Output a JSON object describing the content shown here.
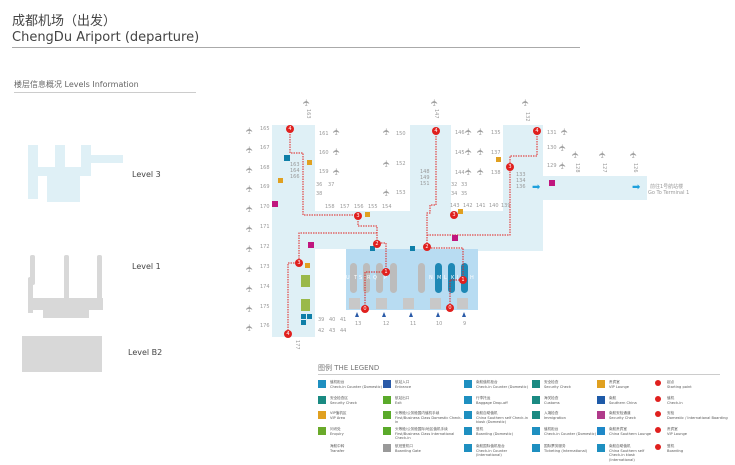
{
  "header": {
    "title_cn": "成都机场（出发）",
    "title_en": "ChengDu Ariport (departure)"
  },
  "levels": {
    "heading": "楼层信息概况   Levels Information",
    "items": [
      {
        "label": "Level 3"
      },
      {
        "label": "Level 1"
      },
      {
        "label": "Level B2"
      }
    ]
  },
  "map": {
    "left_gates": [
      "165",
      "167",
      "168",
      "169",
      "170",
      "171",
      "172",
      "173",
      "174",
      "175",
      "176"
    ],
    "gates": [
      "163",
      "163",
      "164",
      "166",
      "161",
      "160",
      "159",
      "36",
      "37",
      "38",
      "158",
      "157",
      "156",
      "155",
      "154",
      "150",
      "152",
      "153",
      "147",
      "148",
      "149",
      "151",
      "146",
      "145",
      "144",
      "135",
      "137",
      "138",
      "32",
      "33",
      "34",
      "35",
      "143",
      "142",
      "141",
      "140",
      "139",
      "132",
      "131",
      "130",
      "129",
      "128",
      "127",
      "126",
      "133",
      "134",
      "136",
      "39",
      "40",
      "41",
      "42",
      "43",
      "44",
      "177",
      "13",
      "12",
      "11",
      "10",
      "9"
    ],
    "hall_letters": [
      "U",
      "T",
      "S",
      "R",
      "Q",
      "P",
      "N",
      "M",
      "L",
      "K",
      "J",
      "H"
    ],
    "terminal_link": {
      "cn": "前往1号航站楼",
      "en": "Go To Terminal 1"
    },
    "route_markers": [
      "4",
      "4",
      "4",
      "3",
      "3",
      "3",
      "2",
      "2",
      "1",
      "1",
      "0",
      "0"
    ],
    "colors": {
      "level3": "#dff0f6",
      "hall": "#b8dcf2",
      "route": "#e0201e",
      "arrow": "#1ea0dc"
    }
  },
  "legend": {
    "title": "图例  THE LEGEND",
    "items": [
      {
        "cn": "值机柜台",
        "en": "Check-in Counter (Domestic)",
        "color": "#1e8fc0"
      },
      {
        "cn": "安全检查区",
        "en": "Security Check",
        "color": "#1a8a82"
      },
      {
        "cn": "VIP值机区",
        "en": "VIP Area",
        "color": "#e0a020"
      },
      {
        "cn": "问讯处",
        "en": "Enquiry",
        "color": "#6aaa2a"
      },
      {
        "cn": "海航中转",
        "en": "Transfer",
        "color": ""
      },
      {
        "cn": "航站入口",
        "en": "Entrance",
        "color": "#2a5aa8"
      },
      {
        "cn": "航站出口",
        "en": "Exit",
        "color": "#5aaa2a"
      },
      {
        "cn": "头等舱/公务舱国内值机手续",
        "en": "First/Business Class Domestic Check-in",
        "color": "#5aaa2a"
      },
      {
        "cn": "头等舱/公务舱国际/地区值机手续",
        "en": "First/Business Class International Check-in",
        "color": "#5aaa2a"
      },
      {
        "cn": "航班登机口",
        "en": "Boarding Gate",
        "color": "#999999"
      },
      {
        "cn": "南航值机柜台",
        "en": "Check-in Counter (Domestic)",
        "color": "#1e8fc0"
      },
      {
        "cn": "行李托运",
        "en": "Baggage Drop-off",
        "color": "#1e8fc0"
      },
      {
        "cn": "南航自助值机",
        "en": "China Southern self Check-in kiosk (Domestic)",
        "color": "#1e8fc0"
      },
      {
        "cn": "登机",
        "en": "Boarding (Domestic)",
        "color": "#1e8fc0"
      },
      {
        "cn": "南航国际值机柜台",
        "en": "Check-in Counter (International)",
        "color": "#1e8fc0"
      },
      {
        "cn": "安全检查",
        "en": "Security Check",
        "color": "#1a8a82"
      },
      {
        "cn": "海关检查",
        "en": "Customs",
        "color": "#1a8a82"
      },
      {
        "cn": "入境检查",
        "en": "Immigration",
        "color": "#1a8a82"
      },
      {
        "cn": "值机柜台",
        "en": "Check-in Counter (Domestic)",
        "color": "#1e8fc0"
      },
      {
        "cn": "国际票务服务",
        "en": "Ticketing (International)",
        "color": "#1e8fc0"
      },
      {
        "cn": "贵宾室",
        "en": "VIP Lounge",
        "color": "#e0a020"
      },
      {
        "cn": "南航",
        "en": "Southern China",
        "color": "#1e5aa8"
      },
      {
        "cn": "南航安检通道",
        "en": "Security Check",
        "color": "#b03a8a"
      },
      {
        "cn": "南航贵宾室",
        "en": "China Southern Lounge",
        "color": "#1e88c8"
      },
      {
        "cn": "南航自助值机",
        "en": "China Southern self Check-in kiosk (International)",
        "color": "#1e8fc0"
      },
      {
        "cn": "起点",
        "en": "Starting point",
        "color": "#e0201e"
      },
      {
        "cn": "值机",
        "en": "Check-in",
        "color": "#e0201e"
      },
      {
        "cn": "安检",
        "en": "Domestic / International Boarding",
        "color": "#e0201e"
      },
      {
        "cn": "贵宾室",
        "en": "VIP Lounge",
        "color": "#e0201e"
      },
      {
        "cn": "登机",
        "en": "Boarding",
        "color": "#e0201e"
      }
    ]
  }
}
